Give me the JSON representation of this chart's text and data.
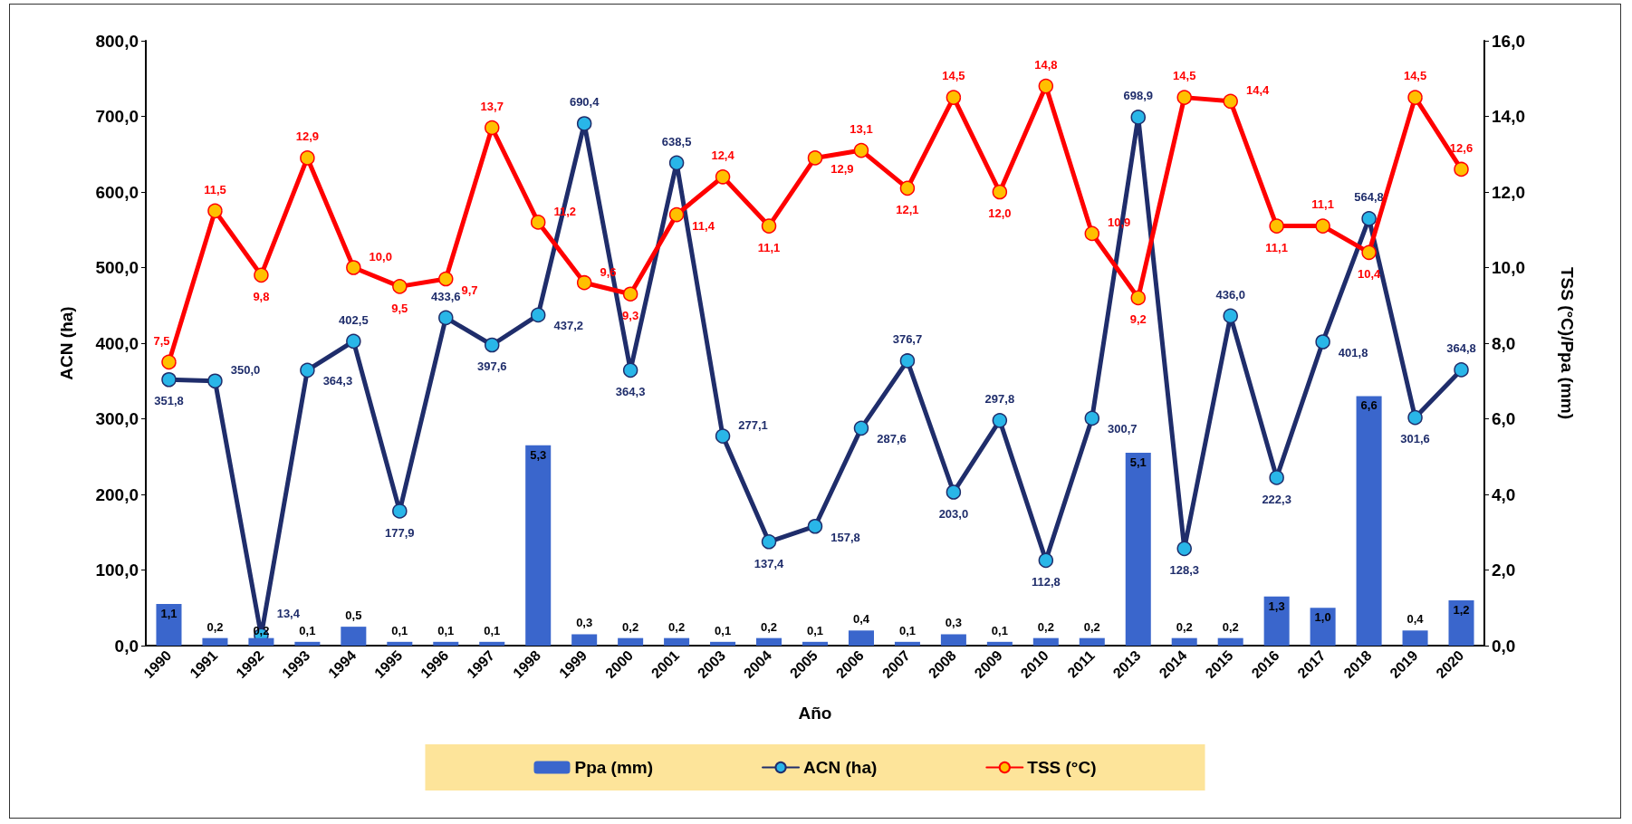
{
  "chart_data": {
    "type": "bar",
    "xlabel": "Año",
    "ylabel": "ACN (ha)",
    "y2label": "TSS (°C)/Ppa (mm)",
    "categories": [
      "1990",
      "1991",
      "1992",
      "1993",
      "1994",
      "1995",
      "1996",
      "1997",
      "1998",
      "1999",
      "2000",
      "2001",
      "2003",
      "2004",
      "2005",
      "2006",
      "2007",
      "2008",
      "2009",
      "2010",
      "2011",
      "2013",
      "2014",
      "2015",
      "2016",
      "2017",
      "2018",
      "2019",
      "2020"
    ],
    "series": [
      {
        "name": "Ppa (mm)",
        "axis": "y2",
        "color": "#3a66cc",
        "values": [
          1.1,
          0.2,
          0.2,
          0.1,
          0.5,
          0.1,
          0.1,
          0.1,
          5.3,
          0.3,
          0.2,
          0.2,
          0.1,
          0.2,
          0.1,
          0.4,
          0.1,
          0.3,
          0.1,
          0.2,
          0.2,
          5.1,
          0.2,
          0.2,
          1.3,
          1.0,
          6.6,
          0.4,
          1.2
        ],
        "value_labels": [
          "1,1",
          "0,2",
          "0,2",
          "0,1",
          "0,5",
          "0,1",
          "0,1",
          "0,1",
          "5,3",
          "0,3",
          "0,2",
          "0,2",
          "0,1",
          "0,2",
          "0,1",
          "0,4",
          "0,1",
          "0,3",
          "0,1",
          "0,2",
          "0,2",
          "5,1",
          "0,2",
          "0,2",
          "1,3",
          "1,0",
          "6,6",
          "0,4",
          "1,2"
        ]
      },
      {
        "name": "ACN (ha)",
        "type": "line",
        "color": "#1f2d6b",
        "values": [
          351.8,
          350.0,
          13.4,
          364.3,
          402.5,
          177.9,
          433.6,
          397.6,
          437.2,
          690.4,
          364.3,
          638.5,
          277.1,
          137.4,
          157.8,
          287.6,
          376.7,
          203.0,
          297.8,
          112.8,
          300.7,
          698.9,
          128.3,
          436.0,
          222.3,
          401.8,
          564.8,
          301.6,
          364.8
        ],
        "value_labels": [
          "351,8",
          "350,0",
          "13,4",
          "364,3",
          "402,5",
          "177,9",
          "433,6",
          "397,6",
          "437,2",
          "690,4",
          "364,3",
          "638,5",
          "277,1",
          "137,4",
          "157,8",
          "287,6",
          "376,7",
          "203,0",
          "297,8",
          "112,8",
          "300,7",
          "698,9",
          "128,3",
          "436,0",
          "222,3",
          "401,8",
          "564,8",
          "301,6",
          "364,8"
        ]
      },
      {
        "name": "TSS (°C)",
        "type": "line",
        "axis": "y2",
        "color": "#ff0000",
        "values": [
          7.5,
          11.5,
          9.8,
          12.9,
          10.0,
          9.5,
          9.7,
          13.7,
          11.2,
          9.6,
          9.3,
          11.4,
          12.4,
          11.1,
          12.9,
          13.1,
          12.1,
          14.5,
          12.0,
          14.8,
          10.9,
          9.2,
          14.5,
          14.4,
          11.1,
          11.1,
          10.4,
          14.5,
          12.6
        ],
        "value_labels": [
          "7,5",
          "11,5",
          "9,8",
          "12,9",
          "10,0",
          "9,5",
          "9,7",
          "13,7",
          "11,2",
          "9,6",
          "9,3",
          "11,4",
          "12,4",
          "11,1",
          "12,9",
          "13,1",
          "12,1",
          "14,5",
          "12,0",
          "14,8",
          "10,9",
          "9,2",
          "14,5",
          "14,4",
          "11,1",
          "11,1",
          "10,4",
          "14,5",
          "12,6"
        ]
      }
    ],
    "ylim": [
      0,
      800
    ],
    "yticks": [
      {
        "value": 0,
        "label": "0,0"
      },
      {
        "value": 100,
        "label": "100,0"
      },
      {
        "value": 200,
        "label": "200,0"
      },
      {
        "value": 300,
        "label": "300,0"
      },
      {
        "value": 400,
        "label": "400,0"
      },
      {
        "value": 500,
        "label": "500,0"
      },
      {
        "value": 600,
        "label": "600,0"
      },
      {
        "value": 700,
        "label": "700,0"
      },
      {
        "value": 800,
        "label": "800,0"
      }
    ],
    "y2lim": [
      0,
      16
    ],
    "y2ticks": [
      {
        "value": 0,
        "label": "0,0"
      },
      {
        "value": 2,
        "label": "2,0"
      },
      {
        "value": 4,
        "label": "4,0"
      },
      {
        "value": 6,
        "label": "6,0"
      },
      {
        "value": 8,
        "label": "8,0"
      },
      {
        "value": 10,
        "label": "10,0"
      },
      {
        "value": 12,
        "label": "12,0"
      },
      {
        "value": 14,
        "label": "14,0"
      },
      {
        "value": 16,
        "label": "16,0"
      }
    ],
    "marker": "circle",
    "line_style": "solid",
    "legend": "bottom",
    "grid": false
  }
}
